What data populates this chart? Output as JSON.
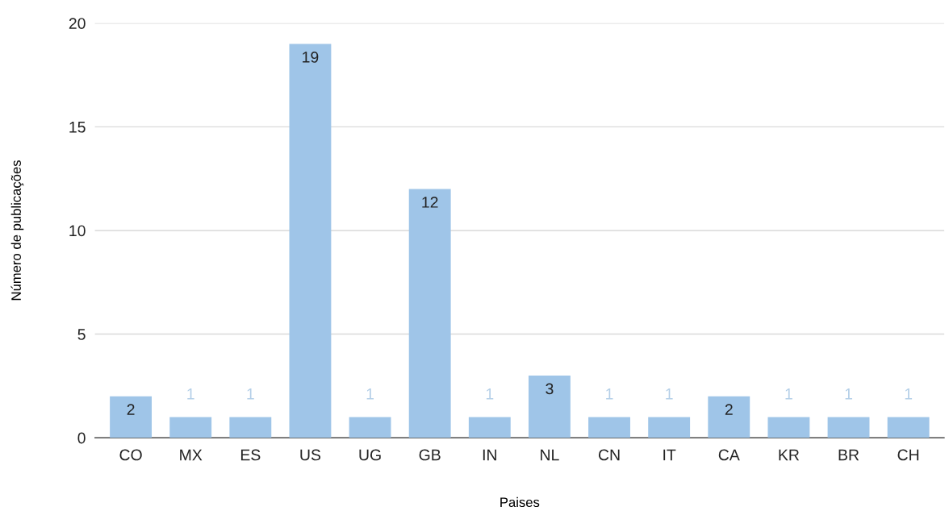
{
  "chart_data": {
    "type": "bar",
    "xlabel": "Paises",
    "ylabel": "Número de publicações",
    "categories": [
      "CO",
      "MX",
      "ES",
      "US",
      "UG",
      "GB",
      "IN",
      "NL",
      "CN",
      "IT",
      "CA",
      "KR",
      "BR",
      "CH"
    ],
    "values": [
      2,
      1,
      1,
      19,
      1,
      12,
      1,
      3,
      1,
      1,
      2,
      1,
      1,
      1
    ],
    "color": "#9fc5e8",
    "ylim": [
      0,
      20
    ],
    "yticks": [
      0,
      5,
      10,
      15,
      20
    ],
    "grid": "y",
    "data_labels": true
  }
}
